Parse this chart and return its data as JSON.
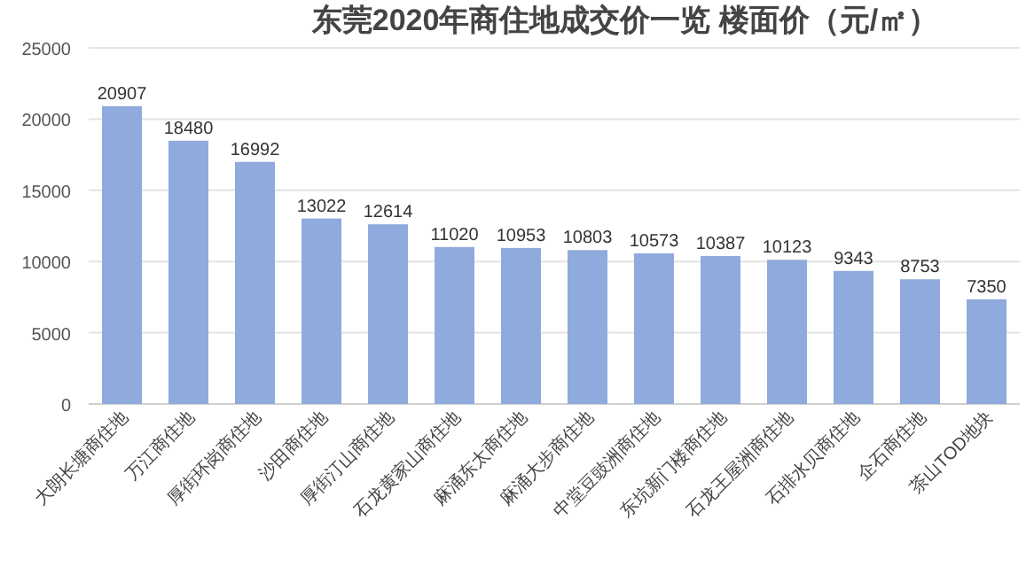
{
  "chart_data": {
    "type": "bar",
    "title": "东莞2020年商住地成交价一览 楼面价（元/㎡）",
    "categories": [
      "大朗长塘商住地",
      "万江商住地",
      "厚街环岗商住地",
      "沙田商住地",
      "厚街汀山商住地",
      "石龙黄家山商住地",
      "麻涌东太商住地",
      "麻涌大步商住地",
      "中堂豆豉洲商住地",
      "东坑新门楼商住地",
      "石龙王屋洲商住地",
      "石排水贝商住地",
      "企石商住地",
      "茶山TOD地块"
    ],
    "values": [
      20907,
      18480,
      16992,
      13022,
      12614,
      11020,
      10953,
      10803,
      10573,
      10387,
      10123,
      9343,
      8753,
      7350
    ],
    "color": "#8faadc",
    "ylim": [
      0,
      25000
    ],
    "yticks": [
      0,
      5000,
      10000,
      15000,
      20000,
      25000
    ],
    "grid": "y",
    "data_labels": true
  }
}
